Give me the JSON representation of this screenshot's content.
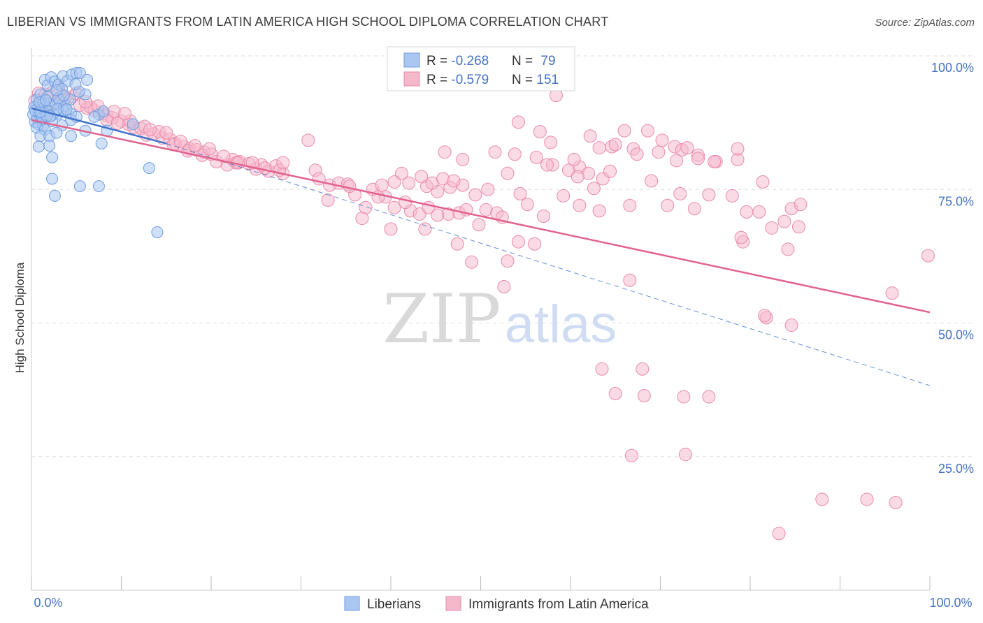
{
  "title": "LIBERIAN VS IMMIGRANTS FROM LATIN AMERICA HIGH SCHOOL DIPLOMA CORRELATION CHART",
  "source": "Source: ZipAtlas.com",
  "watermark": {
    "zip": "ZIP",
    "atlas": "atlas"
  },
  "colors": {
    "blue_fill": "#a9c7f0",
    "blue_stroke": "#6f9de0",
    "blue_line": "#3f73cc",
    "pink_fill": "#f5b8cb",
    "pink_stroke": "#e98aa8",
    "pink_line": "#e2628e",
    "axis_text": "#4472c4",
    "grid": "#dddddd"
  },
  "legend": {
    "row1": {
      "r_label": "R = ",
      "r_value": "-0.268",
      "n_label": "N = ",
      "n_value": "79"
    },
    "row2": {
      "r_label": "R = ",
      "r_value": "-0.579",
      "n_label": "N = ",
      "n_value": "151"
    }
  },
  "chart_data": {
    "type": "scatter",
    "title": "LIBERIAN VS IMMIGRANTS FROM LATIN AMERICA HIGH SCHOOL DIPLOMA CORRELATION CHART",
    "xlabel": "",
    "ylabel": "High School Diploma",
    "xlim": [
      0,
      100
    ],
    "ylim": [
      0,
      100
    ],
    "x_tick_labels": {
      "left": "0.0%",
      "right": "100.0%"
    },
    "y_ticks": [
      {
        "value": 100,
        "label": "100.0%"
      },
      {
        "value": 75,
        "label": "75.0%"
      },
      {
        "value": 50,
        "label": "50.0%"
      },
      {
        "value": 25,
        "label": "25.0%"
      }
    ],
    "legend_position": "bottom",
    "series": [
      {
        "name": "Liberians",
        "r": -0.268,
        "n": 79,
        "trend_solid": {
          "x": [
            0,
            15
          ],
          "y": [
            90.2,
            83.6
          ]
        },
        "trend_dashed": {
          "x": [
            15,
            100
          ],
          "y": [
            83.6,
            38.3
          ]
        },
        "points": [
          [
            1.5,
            95.5
          ],
          [
            1.8,
            94.5
          ],
          [
            2.2,
            96.0
          ],
          [
            2.6,
            95.2
          ],
          [
            3.0,
            94.6
          ],
          [
            3.5,
            96.2
          ],
          [
            4.0,
            95.3
          ],
          [
            4.5,
            96.5
          ],
          [
            5.0,
            96.8
          ],
          [
            5.4,
            96.8
          ],
          [
            6.2,
            95.5
          ],
          [
            3.4,
            93.8
          ],
          [
            6.0,
            92.8
          ],
          [
            0.6,
            91.8
          ],
          [
            1.0,
            92.8
          ],
          [
            1.4,
            91.2
          ],
          [
            2.0,
            91.0
          ],
          [
            2.6,
            90.8
          ],
          [
            3.2,
            91.5
          ],
          [
            3.8,
            90.6
          ],
          [
            4.3,
            91.8
          ],
          [
            0.3,
            90.4
          ],
          [
            1.2,
            90.0
          ],
          [
            1.9,
            89.6
          ],
          [
            2.4,
            89.0
          ],
          [
            3.0,
            89.2
          ],
          [
            3.6,
            89.8
          ],
          [
            4.4,
            89.2
          ],
          [
            0.2,
            89.0
          ],
          [
            0.6,
            88.4
          ],
          [
            1.0,
            88.6
          ],
          [
            1.5,
            88.2
          ],
          [
            0.4,
            87.6
          ],
          [
            0.8,
            87.2
          ],
          [
            1.3,
            87.0
          ],
          [
            2.3,
            87.8
          ],
          [
            3.4,
            87.0
          ],
          [
            4.4,
            88.0
          ],
          [
            0.6,
            86.5
          ],
          [
            1.5,
            86.2
          ],
          [
            6.0,
            86.0
          ],
          [
            8.4,
            86.0
          ],
          [
            1.0,
            85.0
          ],
          [
            2.0,
            85.0
          ],
          [
            2.8,
            85.6
          ],
          [
            4.4,
            85.0
          ],
          [
            0.8,
            83.0
          ],
          [
            2.0,
            83.2
          ],
          [
            7.8,
            83.6
          ],
          [
            2.3,
            81.0
          ],
          [
            2.3,
            77.0
          ],
          [
            2.6,
            73.8
          ],
          [
            5.4,
            75.6
          ],
          [
            7.5,
            75.6
          ],
          [
            13.1,
            79.0
          ],
          [
            11.3,
            87.2
          ],
          [
            14.0,
            67.0
          ],
          [
            7.5,
            89.0
          ],
          [
            8.0,
            89.6
          ],
          [
            7.0,
            88.6
          ],
          [
            3.0,
            92.0
          ],
          [
            1.8,
            92.3
          ],
          [
            5.3,
            93.3
          ],
          [
            4.9,
            94.7
          ],
          [
            0.8,
            89.6
          ],
          [
            1.2,
            88.5
          ],
          [
            0.4,
            89.8
          ],
          [
            3.6,
            92.6
          ],
          [
            2.8,
            93.6
          ],
          [
            1.7,
            88.8
          ],
          [
            5.0,
            88.6
          ],
          [
            2.9,
            90.1
          ],
          [
            1.0,
            89.5
          ],
          [
            2.1,
            88.7
          ],
          [
            3.9,
            90.0
          ],
          [
            0.9,
            91.3
          ],
          [
            1.6,
            91.7
          ]
        ]
      },
      {
        "name": "Immigrants from Latin America",
        "r": -0.579,
        "n": 151,
        "trend_solid": {
          "x": [
            0,
            100
          ],
          "y": [
            88.0,
            52.0
          ]
        },
        "points": [
          [
            0.8,
            93.0
          ],
          [
            1.6,
            92.8
          ],
          [
            2.4,
            93.2
          ],
          [
            3.4,
            92.4
          ],
          [
            0.4,
            91.6
          ],
          [
            1.2,
            91.2
          ],
          [
            2.0,
            90.8
          ],
          [
            2.8,
            91.2
          ],
          [
            3.6,
            91.6
          ],
          [
            4.6,
            92.4
          ],
          [
            5.4,
            90.8
          ],
          [
            6.2,
            90.2
          ],
          [
            7.0,
            89.8
          ],
          [
            8.0,
            89.2
          ],
          [
            8.4,
            88.8
          ],
          [
            9.0,
            88.4
          ],
          [
            10.0,
            87.8
          ],
          [
            10.8,
            87.2
          ],
          [
            11.4,
            86.6
          ],
          [
            12.2,
            86.4
          ],
          [
            12.8,
            85.2
          ],
          [
            13.6,
            85.4
          ],
          [
            14.6,
            84.6
          ],
          [
            15.4,
            84.4
          ],
          [
            16.0,
            83.6
          ],
          [
            17.0,
            83.0
          ],
          [
            17.6,
            82.6
          ],
          [
            18.4,
            82.4
          ],
          [
            19.2,
            82.0
          ],
          [
            20.0,
            81.6
          ],
          [
            8.4,
            88.0
          ],
          [
            9.6,
            87.4
          ],
          [
            11.0,
            87.8
          ],
          [
            12.6,
            86.8
          ],
          [
            14.2,
            85.8
          ],
          [
            15.8,
            83.4
          ],
          [
            17.4,
            82.2
          ],
          [
            19.0,
            81.4
          ],
          [
            20.6,
            80.2
          ],
          [
            21.8,
            79.6
          ],
          [
            22.4,
            80.6
          ],
          [
            23.2,
            80.2
          ],
          [
            24.2,
            79.8
          ],
          [
            25.0,
            78.8
          ],
          [
            25.6,
            79.6
          ],
          [
            26.4,
            78.4
          ],
          [
            27.2,
            79.4
          ],
          [
            28.0,
            78.0
          ],
          [
            6.6,
            90.4
          ],
          [
            7.4,
            90.6
          ],
          [
            9.2,
            89.6
          ],
          [
            10.4,
            89.2
          ],
          [
            13.2,
            86.2
          ],
          [
            15.0,
            85.6
          ],
          [
            16.6,
            84.0
          ],
          [
            18.2,
            83.2
          ],
          [
            19.8,
            82.6
          ],
          [
            21.4,
            81.2
          ],
          [
            22.8,
            80.0
          ],
          [
            24.6,
            80.0
          ],
          [
            26.0,
            79.0
          ],
          [
            27.6,
            78.6
          ],
          [
            4.0,
            92.0
          ],
          [
            5.0,
            93.0
          ],
          [
            6.0,
            91.4
          ],
          [
            3.0,
            94.0
          ],
          [
            23.0,
            80.0
          ],
          [
            28.0,
            80.0
          ],
          [
            30.8,
            84.2
          ],
          [
            31.6,
            78.6
          ],
          [
            32.0,
            77.0
          ],
          [
            33.2,
            75.8
          ],
          [
            34.2,
            76.2
          ],
          [
            35.2,
            76.0
          ],
          [
            38.0,
            75.0
          ],
          [
            39.0,
            75.8
          ],
          [
            40.4,
            76.4
          ],
          [
            42.0,
            76.2
          ],
          [
            44.0,
            75.6
          ],
          [
            45.2,
            74.6
          ],
          [
            46.6,
            75.4
          ],
          [
            48.0,
            75.8
          ],
          [
            49.4,
            74.0
          ],
          [
            50.8,
            75.0
          ],
          [
            36.0,
            74.0
          ],
          [
            41.2,
            78.0
          ],
          [
            43.4,
            77.4
          ],
          [
            44.6,
            76.2
          ],
          [
            45.8,
            77.0
          ],
          [
            47.0,
            76.6
          ],
          [
            39.4,
            73.6
          ],
          [
            37.2,
            71.6
          ],
          [
            40.4,
            71.6
          ],
          [
            42.2,
            71.0
          ],
          [
            43.2,
            70.4
          ],
          [
            44.2,
            71.6
          ],
          [
            46.4,
            70.4
          ],
          [
            47.6,
            70.6
          ],
          [
            48.4,
            71.2
          ],
          [
            49.8,
            68.4
          ],
          [
            50.6,
            71.2
          ],
          [
            51.8,
            70.6
          ],
          [
            52.4,
            69.8
          ],
          [
            33.0,
            73.0
          ],
          [
            35.4,
            75.6
          ],
          [
            38.6,
            73.6
          ],
          [
            41.6,
            72.6
          ],
          [
            36.8,
            69.6
          ],
          [
            40.0,
            67.6
          ],
          [
            43.8,
            67.6
          ],
          [
            45.2,
            70.2
          ],
          [
            47.4,
            64.8
          ],
          [
            49.0,
            61.4
          ],
          [
            53.0,
            61.6
          ],
          [
            52.6,
            56.8
          ],
          [
            54.2,
            65.2
          ],
          [
            56.0,
            64.8
          ],
          [
            57.0,
            70.0
          ],
          [
            51.6,
            82.0
          ],
          [
            53.8,
            81.6
          ],
          [
            56.2,
            81.0
          ],
          [
            58.0,
            79.6
          ],
          [
            59.8,
            78.6
          ],
          [
            61.0,
            79.2
          ],
          [
            62.0,
            78.0
          ],
          [
            60.4,
            80.6
          ],
          [
            63.6,
            77.0
          ],
          [
            64.6,
            83.0
          ],
          [
            67.0,
            82.6
          ],
          [
            69.8,
            82.0
          ],
          [
            71.6,
            83.0
          ],
          [
            72.4,
            82.4
          ],
          [
            74.2,
            81.4
          ],
          [
            76.2,
            80.2
          ],
          [
            78.6,
            80.6
          ],
          [
            81.4,
            76.4
          ],
          [
            84.6,
            71.4
          ],
          [
            85.6,
            72.2
          ],
          [
            66.0,
            86.0
          ],
          [
            68.6,
            86.0
          ],
          [
            70.2,
            84.2
          ],
          [
            73.0,
            82.8
          ],
          [
            74.2,
            80.8
          ],
          [
            76.0,
            80.2
          ],
          [
            57.8,
            83.8
          ],
          [
            62.2,
            85.0
          ],
          [
            65.0,
            83.4
          ],
          [
            67.4,
            81.6
          ],
          [
            71.8,
            80.4
          ],
          [
            64.4,
            78.4
          ],
          [
            62.6,
            75.2
          ],
          [
            69.0,
            76.6
          ],
          [
            72.2,
            74.2
          ],
          [
            75.4,
            74.0
          ],
          [
            78.0,
            73.8
          ],
          [
            79.6,
            70.8
          ],
          [
            81.0,
            70.8
          ],
          [
            57.4,
            79.6
          ],
          [
            59.2,
            73.8
          ],
          [
            61.0,
            72.0
          ],
          [
            63.2,
            71.0
          ],
          [
            66.6,
            72.0
          ],
          [
            70.8,
            72.0
          ],
          [
            79.2,
            65.2
          ],
          [
            82.4,
            67.8
          ],
          [
            85.4,
            68.0
          ],
          [
            66.6,
            58.0
          ],
          [
            81.8,
            51.0
          ],
          [
            84.6,
            49.6
          ],
          [
            58.4,
            92.6
          ],
          [
            78.6,
            82.6
          ],
          [
            73.8,
            71.4
          ],
          [
            55.2,
            72.2
          ],
          [
            54.4,
            74.2
          ],
          [
            54.2,
            87.6
          ],
          [
            56.6,
            85.8
          ],
          [
            48.0,
            80.6
          ],
          [
            46.0,
            82.0
          ],
          [
            53.0,
            78.0
          ],
          [
            68.0,
            41.4
          ],
          [
            65.0,
            36.8
          ],
          [
            68.2,
            36.4
          ],
          [
            72.6,
            36.2
          ],
          [
            63.2,
            82.8
          ],
          [
            60.8,
            77.4
          ],
          [
            79.0,
            66.0
          ],
          [
            83.8,
            69.0
          ],
          [
            84.2,
            63.8
          ],
          [
            63.5,
            41.4
          ],
          [
            75.4,
            36.2
          ],
          [
            72.8,
            25.4
          ],
          [
            66.8,
            25.2
          ],
          [
            83.2,
            10.6
          ],
          [
            93.0,
            17.0
          ],
          [
            99.8,
            62.6
          ],
          [
            95.8,
            55.6
          ],
          [
            88.0,
            17.0
          ],
          [
            96.2,
            16.4
          ],
          [
            81.6,
            51.4
          ]
        ]
      }
    ]
  }
}
